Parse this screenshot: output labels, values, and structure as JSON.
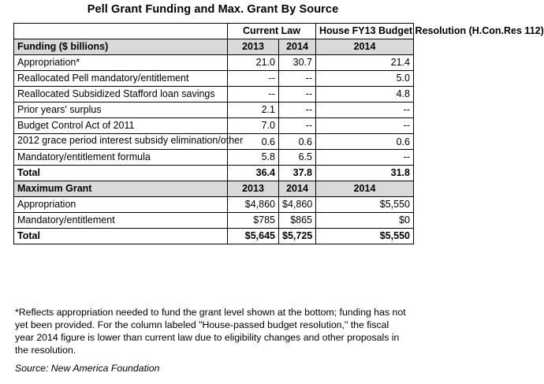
{
  "title": "Pell Grant Funding and Max. Grant By Source",
  "header": {
    "current_law": "Current Law",
    "house": "House FY13 Budget Resolution (H.Con.Res 112)"
  },
  "funding": {
    "section_label": "Funding ($ billions)",
    "years": [
      "2013",
      "2014",
      "2014"
    ],
    "rows": [
      {
        "label": "Appropriation*",
        "v": [
          "21.0",
          "30.7",
          "21.4"
        ]
      },
      {
        "label": "Reallocated Pell mandatory/entitlement",
        "v": [
          "--",
          "--",
          "5.0"
        ]
      },
      {
        "label": "Reallocated Subsidized Stafford loan savings",
        "v": [
          "--",
          "--",
          "4.8"
        ]
      },
      {
        "label": "Prior years' surplus",
        "v": [
          "2.1",
          "--",
          "--"
        ]
      },
      {
        "label": "Budget Control Act of 2011",
        "v": [
          "7.0",
          "--",
          "--"
        ]
      },
      {
        "label": "2012 grace period interest subsidy elimination/other",
        "v": [
          "0.6",
          "0.6",
          "0.6"
        ]
      },
      {
        "label": "Mandatory/entitlement formula",
        "v": [
          "5.8",
          "6.5",
          "--"
        ]
      }
    ],
    "total": {
      "label": "Total",
      "v": [
        "36.4",
        "37.8",
        "31.8"
      ]
    }
  },
  "max_grant": {
    "section_label": "Maximum Grant",
    "years": [
      "2013",
      "2014",
      "2014"
    ],
    "rows": [
      {
        "label": "Appropriation",
        "v": [
          "$4,860",
          "$4,860",
          "$5,550"
        ]
      },
      {
        "label": "Mandatory/entitlement",
        "v": [
          "$785",
          "$865",
          "$0"
        ]
      }
    ],
    "total": {
      "label": "Total",
      "v": [
        "$5,645",
        "$5,725",
        "$5,550"
      ]
    }
  },
  "footnote": "*Reflects appropriation needed to fund the grant level shown at the bottom; funding has not yet been provided. For the column labeled \"House-passed budget resolution,\" the fiscal year 2014 figure is lower than current law due to eligibility changes and other proposals in the resolution.",
  "source": "Source: New America Foundation"
}
